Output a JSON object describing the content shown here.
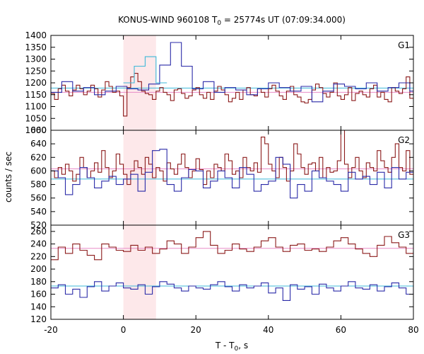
{
  "chart_data": {
    "type": "line",
    "title": "KONUS-WIND 960108 T",
    "title_sub": "0",
    "title_rest": " = 25774s UT (07:09:34.000)",
    "xlabel": "T - T",
    "xlabel_sub": "0",
    "xlabel_rest": ", s",
    "ylabel": "counts / sec",
    "xlim": [
      -20,
      80
    ],
    "xticks": [
      "-20",
      "0",
      "20",
      "40",
      "60",
      "80"
    ],
    "highlight": [
      0,
      9
    ],
    "colors": {
      "red": "#8b1a1a",
      "blue": "#2a2aa8",
      "pink": "#e88cc8",
      "cyan": "#3cb8d8",
      "highlight": "#fde8ea"
    },
    "panels": [
      {
        "label": "G1",
        "ylim": [
          1000,
          1400
        ],
        "yticks": [
          "1000",
          "1050",
          "1100",
          "1150",
          "1200",
          "1250",
          "1300",
          "1350",
          "1400"
        ],
        "bg_red": 1160,
        "bg_blue": 1178,
        "red_start": -20,
        "red_step": 1,
        "red_values": [
          1155,
          1130,
          1175,
          1190,
          1165,
          1145,
          1170,
          1190,
          1175,
          1150,
          1165,
          1190,
          1175,
          1140,
          1170,
          1205,
          1185,
          1160,
          1165,
          1145,
          1060,
          1180,
          1225,
          1240,
          1205,
          1165,
          1155,
          1150,
          1130,
          1165,
          1180,
          1160,
          1150,
          1125,
          1170,
          1175,
          1155,
          1135,
          1145,
          1170,
          1180,
          1150,
          1135,
          1160,
          1130,
          1165,
          1185,
          1170,
          1150,
          1120,
          1135,
          1160,
          1130,
          1170,
          1180,
          1150,
          1145,
          1175,
          1160,
          1140,
          1175,
          1190,
          1165,
          1145,
          1130,
          1165,
          1185,
          1150,
          1140,
          1120,
          1115,
          1130,
          1170,
          1195,
          1180,
          1155,
          1140,
          1160,
          1200,
          1145,
          1130,
          1150,
          1180,
          1125,
          1155,
          1165,
          1150,
          1140,
          1175,
          1190,
          1140,
          1160,
          1130,
          1120,
          1180,
          1165,
          1155,
          1175,
          1225,
          1135
        ],
        "blue_start": -20,
        "blue_step": 3,
        "blue_values": [
          1160,
          1205,
          1165,
          1180,
          1150,
          1165,
          1185,
          1175,
          1170,
          1195,
          1275,
          1370,
          1270,
          1175,
          1205,
          1160,
          1180,
          1170,
          1150,
          1175,
          1200,
          1180,
          1165,
          1185,
          1120,
          1165,
          1195,
          1185,
          1175,
          1200,
          1165,
          1180,
          1200,
          1165
        ],
        "cyan_start": 0,
        "cyan_step": 3,
        "cyan_values": [
          1200,
          1270,
          1310,
          1200
        ]
      },
      {
        "label": "G2",
        "ylim": [
          520,
          660
        ],
        "yticks": [
          "520",
          "540",
          "560",
          "580",
          "600",
          "620",
          "640",
          "660"
        ],
        "bg_red": 603,
        "bg_blue": 588,
        "red_start": -20,
        "red_step": 1,
        "red_values": [
          600,
          590,
          605,
          595,
          610,
          600,
          585,
          595,
          620,
          605,
          590,
          600,
          612,
          598,
          630,
          605,
          590,
          600,
          625,
          610,
          595,
          580,
          600,
          615,
          605,
          595,
          620,
          610,
          590,
          605,
          600,
          585,
          612,
          603,
          595,
          610,
          625,
          605,
          590,
          600,
          618,
          602,
          580,
          600,
          590,
          610,
          605,
          600,
          625,
          615,
          595,
          600,
          590,
          620,
          605,
          600,
          612,
          598,
          650,
          640,
          610,
          600,
          590,
          620,
          605,
          585,
          600,
          640,
          625,
          605,
          595,
          610,
          612,
          600,
          620,
          590,
          605,
          598,
          600,
          615,
          660,
          610,
          590,
          605,
          620,
          600,
          590,
          612,
          605,
          600,
          630,
          615,
          605,
          598,
          620,
          640,
          605,
          600,
          630,
          595
        ],
        "blue_start": -20,
        "blue_step": 2,
        "blue_values": [
          600,
          590,
          565,
          580,
          605,
          590,
          575,
          585,
          592,
          580,
          588,
          595,
          570,
          598,
          630,
          632,
          580,
          570,
          590,
          602,
          600,
          575,
          585,
          600,
          590,
          575,
          605,
          595,
          570,
          580,
          585,
          620,
          610,
          560,
          580,
          570,
          600,
          590,
          585,
          580,
          570,
          598,
          588,
          592,
          580,
          598,
          575,
          605,
          588,
          598
        ]
      },
      {
        "label": "G3",
        "ylim": [
          120,
          270
        ],
        "yticks": [
          "120",
          "140",
          "160",
          "180",
          "200",
          "220",
          "240",
          "260"
        ],
        "bg_red": 233,
        "bg_blue": 173,
        "red_start": -20,
        "red_step": 2,
        "red_values": [
          215,
          235,
          225,
          240,
          230,
          222,
          215,
          240,
          235,
          230,
          228,
          238,
          230,
          235,
          225,
          232,
          245,
          240,
          225,
          235,
          250,
          260,
          238,
          225,
          230,
          240,
          232,
          228,
          235,
          245,
          250,
          235,
          228,
          238,
          240,
          230,
          232,
          228,
          235,
          245,
          250,
          240,
          232,
          225,
          220,
          238,
          252,
          242,
          235,
          225,
          228,
          235,
          244,
          252,
          240,
          232,
          230,
          235,
          238,
          240,
          245,
          238,
          230,
          228,
          235,
          240,
          228,
          235,
          225,
          232,
          262,
          250,
          242,
          238,
          225,
          232,
          255,
          260,
          225,
          228
        ],
        "blue_start": -20,
        "blue_step": 2,
        "blue_values": [
          170,
          175,
          160,
          168,
          155,
          172,
          180,
          165,
          173,
          178,
          170,
          168,
          175,
          160,
          172,
          180,
          176,
          170,
          165,
          173,
          170,
          168,
          175,
          180,
          172,
          165,
          175,
          170,
          173,
          178,
          162,
          170,
          150,
          175,
          168,
          172,
          160,
          176,
          170,
          165,
          173,
          180,
          170,
          168,
          175,
          165,
          172,
          178,
          170,
          160,
          173,
          168,
          175,
          180,
          170,
          165,
          173,
          150,
          172,
          178,
          170,
          165,
          175,
          170,
          173,
          168,
          160,
          172,
          180,
          170,
          165,
          175,
          170,
          160,
          168,
          173,
          175,
          148,
          172,
          178
        ]
      }
    ]
  }
}
